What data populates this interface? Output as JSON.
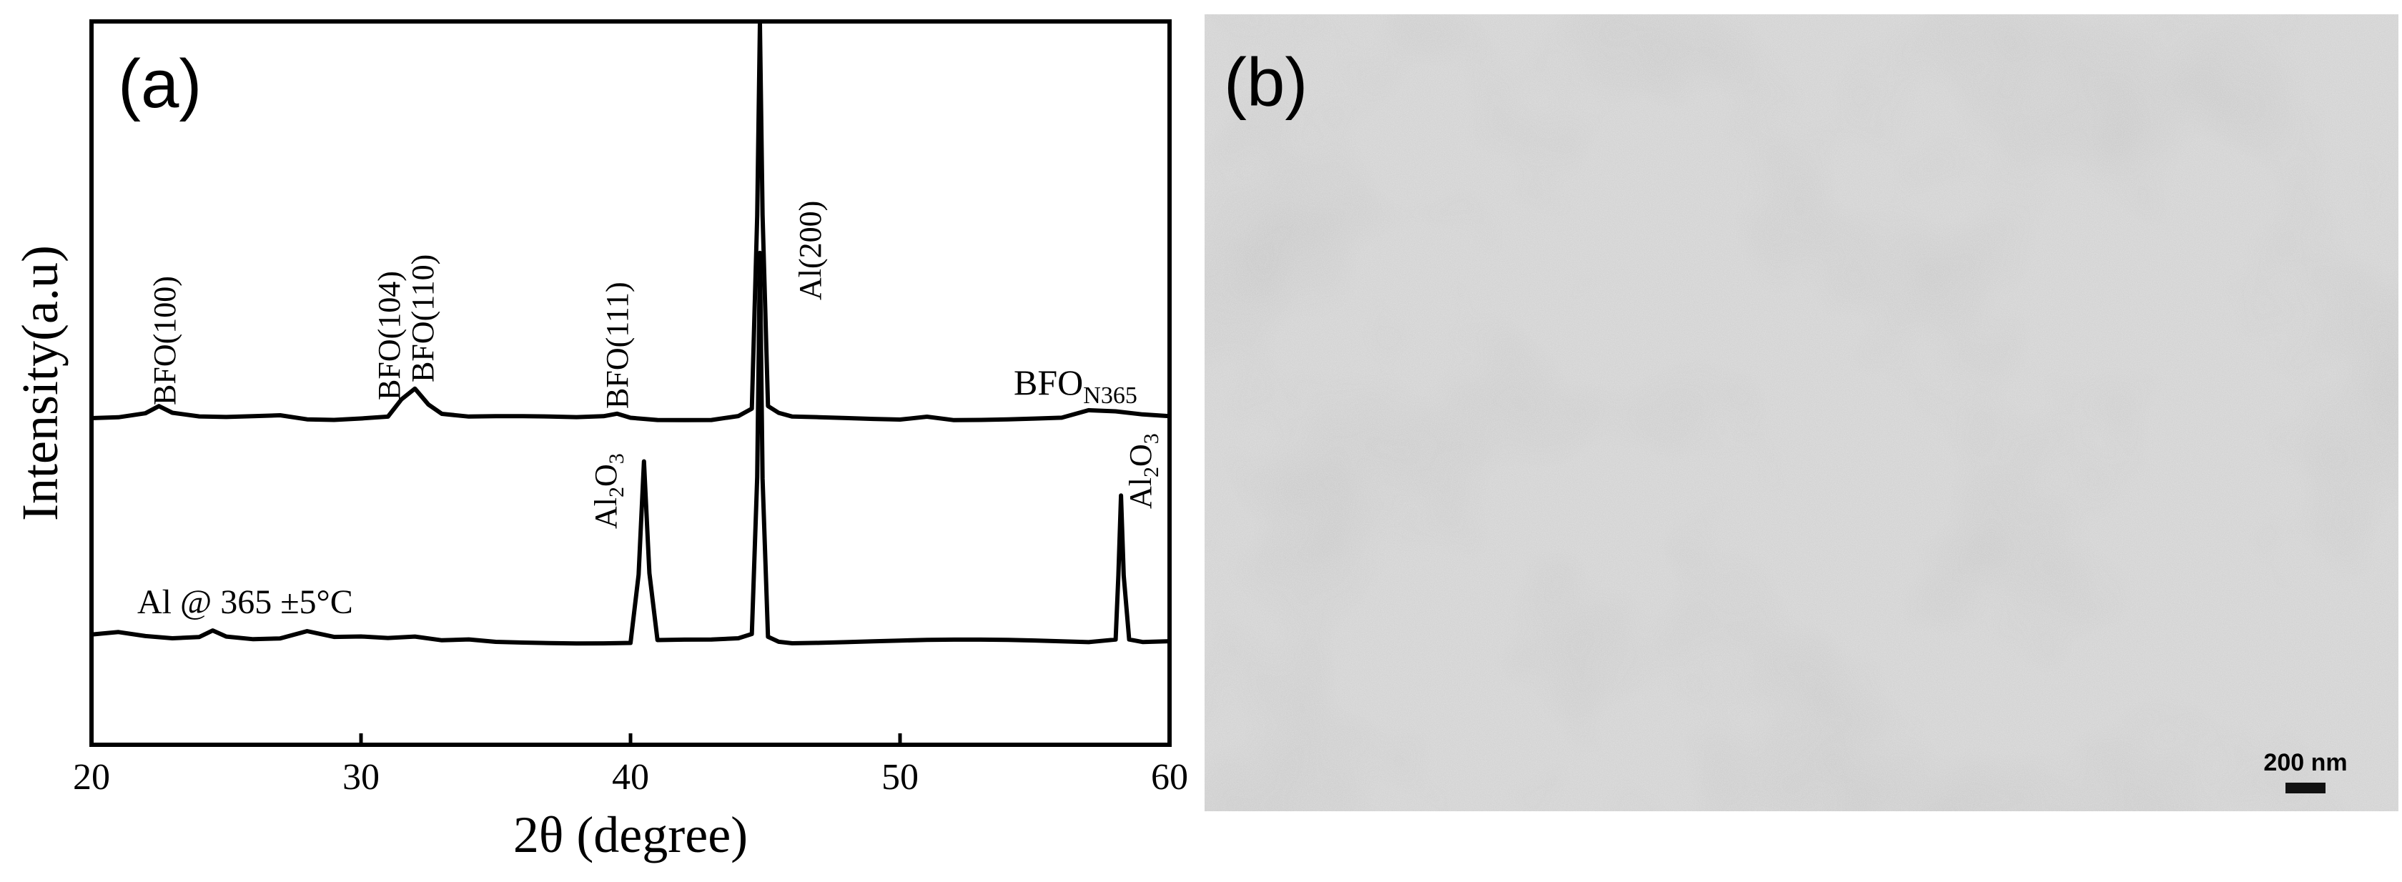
{
  "panel_a": {
    "label": "(a)",
    "chart_data": {
      "type": "line",
      "xlabel": "2θ (degree)",
      "ylabel": "Intensity(a.u)",
      "xlim": [
        20,
        60
      ],
      "xticks": [
        20,
        30,
        40,
        50,
        60
      ],
      "y_ticks_shown": false,
      "series": [
        {
          "name": "BFO",
          "name_subscript": "N365",
          "peaks": [
            {
              "x": 22.5,
              "label": "BFO(100)"
            },
            {
              "x": 31.9,
              "label": "BFO(104)"
            },
            {
              "x": 32.2,
              "label": "BFO(110)"
            },
            {
              "x": 39.5,
              "label": "BFO(111)"
            },
            {
              "x": 44.8,
              "label": "Al(200)"
            }
          ],
          "x": [
            20,
            21,
            22,
            22.5,
            23,
            24,
            25,
            26,
            27,
            28,
            29,
            30,
            31,
            31.5,
            32,
            32.5,
            33,
            34,
            35,
            36,
            37,
            38,
            39,
            39.5,
            40,
            41,
            42,
            43,
            44,
            44.5,
            44.7,
            44.8,
            44.9,
            45.1,
            45.5,
            46,
            47,
            48,
            49,
            50,
            51,
            52,
            53,
            54,
            55,
            56,
            57,
            58,
            59,
            60
          ],
          "y": [
            0,
            0,
            0.1,
            0.3,
            0.1,
            0,
            0,
            0.05,
            0.1,
            0,
            0,
            0.05,
            0.1,
            0.6,
            0.9,
            0.4,
            0.1,
            0,
            0,
            0,
            0,
            0,
            0.05,
            0.15,
            0.05,
            0,
            0,
            0,
            0.1,
            0.3,
            6,
            12,
            6,
            0.3,
            0.1,
            0,
            0,
            0,
            0,
            0,
            0.1,
            0,
            0,
            0,
            0,
            0,
            0.2,
            0.15,
            0.05,
            0
          ]
        },
        {
          "name": "Al @ 365 ±5°C",
          "peaks": [
            {
              "x": 40.5,
              "label": "Al",
              "label_subscript_1": "2",
              "label_mid": "O",
              "label_subscript_2": "3"
            },
            {
              "x": 44.8
            },
            {
              "x": 58.2,
              "label": "Al",
              "label_subscript_1": "2",
              "label_mid": "O",
              "label_subscript_2": "3"
            }
          ],
          "x": [
            20,
            21,
            22,
            23,
            24,
            24.5,
            25,
            26,
            27,
            28,
            29,
            30,
            31,
            32,
            33,
            34,
            35,
            36,
            37,
            38,
            39,
            40,
            40.3,
            40.5,
            40.7,
            41,
            42,
            43,
            44,
            44.5,
            44.7,
            44.8,
            44.9,
            45.1,
            45.5,
            46,
            47,
            48,
            49,
            50,
            51,
            52,
            53,
            54,
            55,
            56,
            57,
            58,
            58.1,
            58.2,
            58.3,
            58.5,
            59,
            60
          ],
          "y": [
            0.1,
            0.2,
            0.1,
            0.05,
            0.1,
            0.3,
            0.1,
            0,
            0,
            0.2,
            0,
            0,
            -0.05,
            0,
            -0.1,
            -0.05,
            -0.1,
            -0.1,
            -0.1,
            -0.1,
            -0.1,
            -0.1,
            2,
            5.5,
            2,
            -0.1,
            -0.1,
            -0.1,
            -0.05,
            0.1,
            5,
            12,
            5,
            0.1,
            -0.05,
            -0.1,
            -0.1,
            -0.1,
            -0.1,
            -0.1,
            -0.1,
            -0.1,
            -0.1,
            -0.1,
            -0.1,
            -0.1,
            -0.1,
            0,
            2,
            4.5,
            2,
            0,
            -0.1,
            -0.1
          ]
        }
      ]
    }
  },
  "panel_b": {
    "label": "(b)",
    "scale_bar_label": "200 nm"
  }
}
